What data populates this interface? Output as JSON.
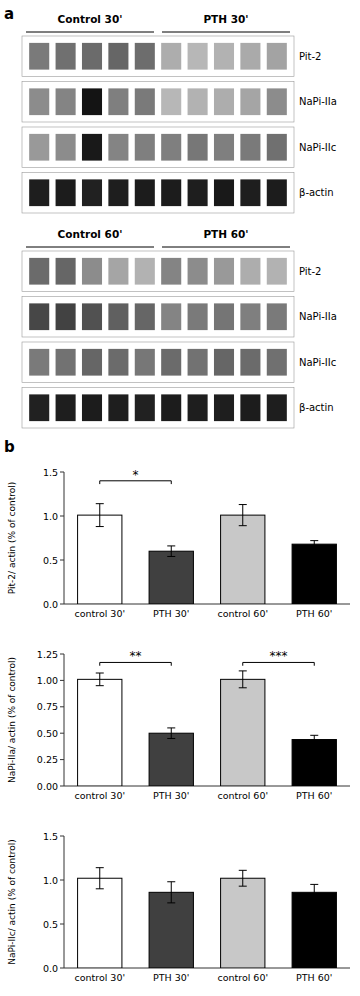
{
  "chart_data": [
    {
      "type": "blot",
      "title": "a",
      "headers": [
        "Control 30'",
        "PTH 30'"
      ],
      "rows": [
        {
          "label": "Pit-2",
          "bands_left": [
            0.48,
            0.44,
            0.42,
            0.4,
            0.43
          ],
          "bands_right": [
            0.68,
            0.72,
            0.7,
            0.67,
            0.64
          ]
        },
        {
          "label": "NaPi-IIa",
          "bands_left": [
            0.55,
            0.52,
            0.08,
            0.5,
            0.48
          ],
          "bands_right": [
            0.72,
            0.7,
            0.68,
            0.65,
            0.55
          ]
        },
        {
          "label": "NaPi-IIc",
          "bands_left": [
            0.6,
            0.55,
            0.1,
            0.52,
            0.5
          ],
          "bands_right": [
            0.5,
            0.47,
            0.5,
            0.48,
            0.44
          ]
        },
        {
          "label": "β-actin",
          "bands_left": [
            0.12,
            0.11,
            0.13,
            0.12,
            0.11
          ],
          "bands_right": [
            0.11,
            0.12,
            0.1,
            0.12,
            0.11
          ]
        }
      ]
    },
    {
      "type": "blot",
      "headers": [
        "Control 60'",
        "PTH 60'"
      ],
      "rows": [
        {
          "label": "Pit-2",
          "bands_left": [
            0.42,
            0.4,
            0.55,
            0.65,
            0.7
          ],
          "bands_right": [
            0.52,
            0.55,
            0.6,
            0.68,
            0.7
          ]
        },
        {
          "label": "NaPi-IIa",
          "bands_left": [
            0.28,
            0.26,
            0.32,
            0.38,
            0.4
          ],
          "bands_right": [
            0.52,
            0.48,
            0.46,
            0.5,
            0.48
          ]
        },
        {
          "label": "NaPi-IIc",
          "bands_left": [
            0.48,
            0.45,
            0.4,
            0.42,
            0.47
          ],
          "bands_right": [
            0.42,
            0.45,
            0.4,
            0.42,
            0.44
          ]
        },
        {
          "label": "β-actin",
          "bands_left": [
            0.13,
            0.12,
            0.11,
            0.12,
            0.13
          ],
          "bands_right": [
            0.11,
            0.12,
            0.12,
            0.11,
            0.12
          ]
        }
      ]
    },
    {
      "type": "bar",
      "title": "b",
      "ylabel": "Pit-2/ actin (% of control)",
      "ylim": [
        0,
        1.5
      ],
      "yticks": [
        {
          "value": 0.0,
          "label": "0.0"
        },
        0.5,
        {
          "value": 1.0,
          "label": "1.0"
        },
        1.5
      ],
      "categories": [
        "control 30'",
        "PTH 30'",
        "control 60'",
        "PTH 60'"
      ],
      "values": [
        1.01,
        0.6,
        1.01,
        0.68
      ],
      "errors": [
        0.13,
        0.06,
        0.12,
        0.04
      ],
      "colors": [
        "#ffffff",
        "#404040",
        "#c8c8c8",
        "#000000"
      ],
      "annotations": [
        {
          "x1": 0,
          "x2": 1,
          "y": 1.4,
          "label": "*"
        }
      ]
    },
    {
      "type": "bar",
      "ylabel": "NaPi-IIa/ actin (% of control)",
      "ylim": [
        0,
        1.25
      ],
      "yticks": [
        {
          "value": 0.0,
          "label": "0.00"
        },
        0.25,
        {
          "value": 0.5,
          "label": "0.50"
        },
        0.75,
        {
          "value": 1.0,
          "label": "1.00"
        },
        1.25
      ],
      "categories": [
        "control 30'",
        "PTH 30'",
        "control 60'",
        "PTH 60'"
      ],
      "values": [
        1.01,
        0.5,
        1.01,
        0.44
      ],
      "errors": [
        0.06,
        0.05,
        0.08,
        0.04
      ],
      "colors": [
        "#ffffff",
        "#404040",
        "#c8c8c8",
        "#000000"
      ],
      "annotations": [
        {
          "x1": 0,
          "x2": 1,
          "y": 1.17,
          "label": "**"
        },
        {
          "x1": 2,
          "x2": 3,
          "y": 1.17,
          "label": "***"
        }
      ]
    },
    {
      "type": "bar",
      "ylabel": "NaPi-IIc/ actin (% of control)",
      "ylim": [
        0,
        1.5
      ],
      "yticks": [
        {
          "value": 0.0,
          "label": "0.0"
        },
        0.5,
        {
          "value": 1.0,
          "label": "1.0"
        },
        1.5
      ],
      "categories": [
        "control 30'",
        "PTH 30'",
        "control 60'",
        "PTH 60'"
      ],
      "values": [
        1.02,
        0.86,
        1.02,
        0.86
      ],
      "errors": [
        0.12,
        0.12,
        0.09,
        0.09
      ],
      "colors": [
        "#ffffff",
        "#404040",
        "#c8c8c8",
        "#000000"
      ],
      "annotations": []
    }
  ]
}
